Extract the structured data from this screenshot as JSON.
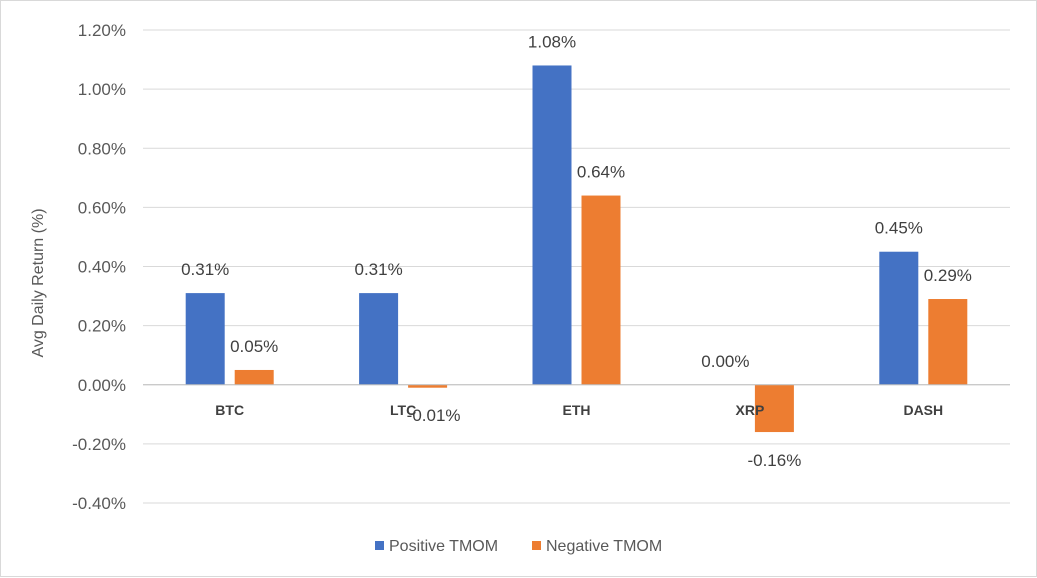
{
  "chart_data": {
    "type": "bar",
    "title": "",
    "xlabel": "",
    "ylabel": "Avg Daily Return (%)",
    "categories": [
      "BTC",
      "LTC",
      "ETH",
      "XRP",
      "DASH"
    ],
    "series": [
      {
        "name": "Positive TMOM",
        "color": "#4472C4",
        "values": [
          0.31,
          0.31,
          1.08,
          0.0,
          0.45
        ],
        "labels": [
          "0.31%",
          "0.31%",
          "1.08%",
          "0.00%",
          "0.45%"
        ]
      },
      {
        "name": "Negative TMOM",
        "color": "#ED7D31",
        "values": [
          0.05,
          -0.01,
          0.64,
          -0.16,
          0.29
        ],
        "labels": [
          "0.05%",
          "-0.01%",
          "0.64%",
          "-0.16%",
          "0.29%"
        ]
      }
    ],
    "ylim": [
      -0.4,
      1.2
    ],
    "yticks": [
      -0.4,
      -0.2,
      0.0,
      0.2,
      0.4,
      0.6,
      0.8,
      1.0,
      1.2
    ],
    "ytick_labels": [
      "-0.40%",
      "-0.20%",
      "0.00%",
      "0.20%",
      "0.40%",
      "0.60%",
      "0.80%",
      "1.00%",
      "1.20%"
    ],
    "grid": true,
    "legend_position": "bottom"
  }
}
